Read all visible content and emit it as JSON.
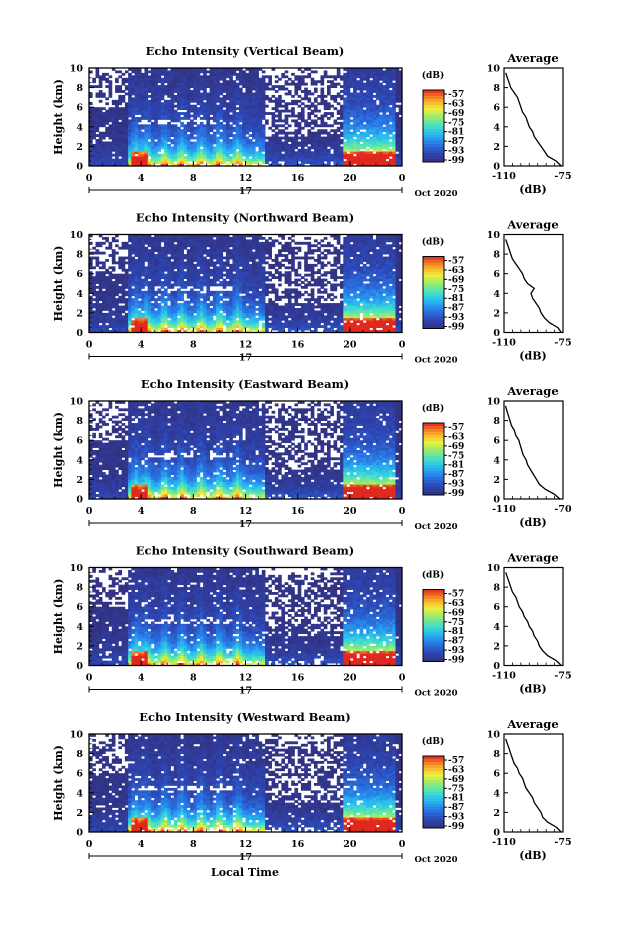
{
  "chart_data": [
    {
      "type": "heatmap",
      "title": "Echo Intensity (Vertical Beam)",
      "ylabel": "Height (km)",
      "x_ticks": [
        "0",
        "4",
        "8",
        "12",
        "16",
        "20",
        "0"
      ],
      "y_ticks": [
        "0",
        "2",
        "4",
        "6",
        "8",
        "10"
      ],
      "xlim": [
        0,
        24
      ],
      "ylim": [
        0,
        10
      ],
      "date_marker": "17",
      "date_label": "Oct 2020",
      "colorbar": {
        "unit": "(dB)",
        "ticks": [
          "-57",
          "-63",
          "-69",
          "-75",
          "-81",
          "-87",
          "-93",
          "-99"
        ]
      },
      "profile": {
        "title": "Average",
        "xlabel": "(dB)",
        "x_ticks": [
          "-110",
          "-75"
        ],
        "xlim": [
          -110,
          -75
        ],
        "y_ticks": [
          "0",
          "2",
          "4",
          "6",
          "8",
          "10"
        ],
        "ylim": [
          0,
          10
        ],
        "heights": [
          0,
          0.5,
          1,
          1.5,
          2,
          2.5,
          3,
          3.5,
          4,
          4.5,
          5,
          5.5,
          6,
          6.5,
          7,
          7.5,
          8,
          8.5,
          9,
          9.5
        ],
        "values": [
          -76,
          -79,
          -84,
          -86,
          -88,
          -90,
          -92,
          -93,
          -95,
          -96,
          -97,
          -99,
          -100,
          -101,
          -102,
          -104,
          -106,
          -107,
          -108,
          -109
        ]
      }
    },
    {
      "type": "heatmap",
      "title": "Echo Intensity (Northward Beam)",
      "ylabel": "Height (km)",
      "x_ticks": [
        "0",
        "4",
        "8",
        "12",
        "16",
        "20",
        "0"
      ],
      "y_ticks": [
        "0",
        "2",
        "4",
        "6",
        "8",
        "10"
      ],
      "xlim": [
        0,
        24
      ],
      "ylim": [
        0,
        10
      ],
      "date_marker": "17",
      "date_label": "Oct 2020",
      "colorbar": {
        "unit": "(dB)",
        "ticks": [
          "-57",
          "-63",
          "-69",
          "-75",
          "-81",
          "-87",
          "-93",
          "-99"
        ]
      },
      "profile": {
        "title": "Average",
        "xlabel": "(dB)",
        "x_ticks": [
          "-110",
          "-75"
        ],
        "xlim": [
          -110,
          -75
        ],
        "y_ticks": [
          "0",
          "2",
          "4",
          "6",
          "8",
          "10"
        ],
        "ylim": [
          0,
          10
        ],
        "heights": [
          0,
          0.5,
          1,
          1.5,
          2,
          2.5,
          3,
          3.5,
          4,
          4.5,
          5,
          5.5,
          6,
          6.5,
          7,
          7.5,
          8,
          8.5,
          9,
          9.5
        ],
        "values": [
          -76,
          -78,
          -83,
          -86,
          -88,
          -89,
          -91,
          -93,
          -94,
          -92,
          -96,
          -98,
          -99,
          -101,
          -103,
          -105,
          -106,
          -107,
          -108,
          -109
        ]
      }
    },
    {
      "type": "heatmap",
      "title": "Echo Intensity (Eastward Beam)",
      "ylabel": "Height (km)",
      "x_ticks": [
        "0",
        "4",
        "8",
        "12",
        "16",
        "20",
        "0"
      ],
      "y_ticks": [
        "0",
        "2",
        "4",
        "6",
        "8",
        "10"
      ],
      "xlim": [
        0,
        24
      ],
      "ylim": [
        0,
        10
      ],
      "date_marker": "17",
      "date_label": "Oct 2020",
      "colorbar": {
        "unit": "(dB)",
        "ticks": [
          "-57",
          "-63",
          "-69",
          "-75",
          "-81",
          "-87",
          "-93",
          "-99"
        ]
      },
      "profile": {
        "title": "Average",
        "xlabel": "(dB)",
        "x_ticks": [
          "-110",
          "-70"
        ],
        "xlim": [
          -110,
          -70
        ],
        "y_ticks": [
          "0",
          "2",
          "4",
          "6",
          "8",
          "10"
        ],
        "ylim": [
          0,
          10
        ],
        "heights": [
          0,
          0.5,
          1,
          1.5,
          2,
          2.5,
          3,
          3.5,
          4,
          4.5,
          5,
          5.5,
          6,
          6.5,
          7,
          7.5,
          8,
          8.5,
          9,
          9.5
        ],
        "values": [
          -72,
          -76,
          -82,
          -86,
          -88,
          -90,
          -92,
          -94,
          -95,
          -97,
          -98,
          -99,
          -100,
          -102,
          -103,
          -105,
          -106,
          -107,
          -108,
          -109
        ]
      }
    },
    {
      "type": "heatmap",
      "title": "Echo Intensity (Southward Beam)",
      "ylabel": "Height (km)",
      "x_ticks": [
        "0",
        "4",
        "8",
        "12",
        "16",
        "20",
        "0"
      ],
      "y_ticks": [
        "0",
        "2",
        "4",
        "6",
        "8",
        "10"
      ],
      "xlim": [
        0,
        24
      ],
      "ylim": [
        0,
        10
      ],
      "date_marker": "17",
      "date_label": "Oct 2020",
      "colorbar": {
        "unit": "(dB)",
        "ticks": [
          "-57",
          "-63",
          "-69",
          "-75",
          "-81",
          "-87",
          "-93",
          "-99"
        ]
      },
      "profile": {
        "title": "Average",
        "xlabel": "(dB)",
        "x_ticks": [
          "-110",
          "-75"
        ],
        "xlim": [
          -110,
          -75
        ],
        "y_ticks": [
          "0",
          "2",
          "4",
          "6",
          "8",
          "10"
        ],
        "ylim": [
          0,
          10
        ],
        "heights": [
          0,
          0.5,
          1,
          1.5,
          2,
          2.5,
          3,
          3.5,
          4,
          4.5,
          5,
          5.5,
          6,
          6.5,
          7,
          7.5,
          8,
          8.5,
          9,
          9.5
        ],
        "values": [
          -76,
          -79,
          -84,
          -87,
          -89,
          -90,
          -92,
          -93,
          -95,
          -96,
          -98,
          -99,
          -101,
          -102,
          -103,
          -105,
          -106,
          -107,
          -108,
          -109
        ]
      }
    },
    {
      "type": "heatmap",
      "title": "Echo Intensity (Westward Beam)",
      "ylabel": "Height (km)",
      "x_ticks": [
        "0",
        "4",
        "8",
        "12",
        "16",
        "20",
        "0"
      ],
      "y_ticks": [
        "0",
        "2",
        "4",
        "6",
        "8",
        "10"
      ],
      "xlim": [
        0,
        24
      ],
      "ylim": [
        0,
        10
      ],
      "date_marker": "17",
      "date_label": "Oct 2020",
      "xlabel": "Local Time",
      "colorbar": {
        "unit": "(dB)",
        "ticks": [
          "-57",
          "-63",
          "-69",
          "-75",
          "-81",
          "-87",
          "-93",
          "-99"
        ]
      },
      "profile": {
        "title": "Average",
        "xlabel": "(dB)",
        "x_ticks": [
          "-110",
          "-75"
        ],
        "xlim": [
          -110,
          -75
        ],
        "y_ticks": [
          "0",
          "2",
          "4",
          "6",
          "8",
          "10"
        ],
        "ylim": [
          0,
          10
        ],
        "heights": [
          0,
          0.5,
          1,
          1.5,
          2,
          2.5,
          3,
          3.5,
          4,
          4.5,
          5,
          5.5,
          6,
          6.5,
          7,
          7.5,
          8,
          8.5,
          9,
          9.5
        ],
        "values": [
          -76,
          -79,
          -84,
          -87,
          -88,
          -90,
          -92,
          -93,
          -95,
          -97,
          -98,
          -99,
          -101,
          -102,
          -104,
          -105,
          -106,
          -107,
          -108,
          -109
        ]
      }
    }
  ]
}
